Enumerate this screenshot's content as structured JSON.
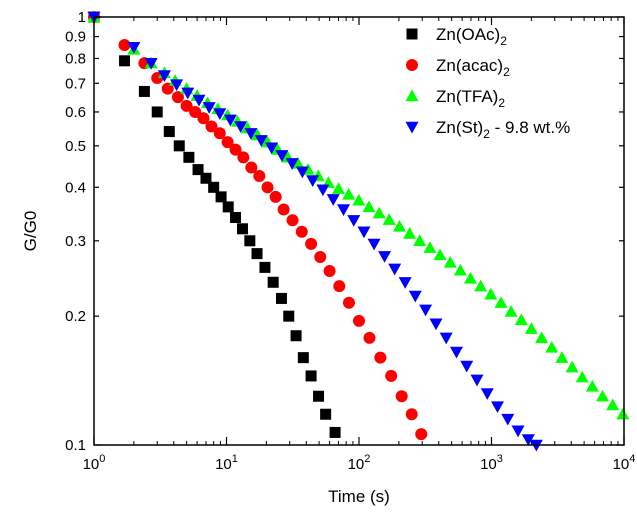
{
  "chart_data": {
    "type": "scatter",
    "xlabel": "Time (s)",
    "ylabel": "G/G0",
    "xscale": "log",
    "yscale": "log",
    "xlim": [
      1,
      10000
    ],
    "ylim": [
      0.1,
      1
    ],
    "grid": false,
    "legend_position": "top-right",
    "x_ticks": [
      {
        "value": 1,
        "base": "10",
        "exp": "0"
      },
      {
        "value": 10,
        "base": "10",
        "exp": "1"
      },
      {
        "value": 100,
        "base": "10",
        "exp": "2"
      },
      {
        "value": 1000,
        "base": "10",
        "exp": "3"
      },
      {
        "value": 10000,
        "base": "10",
        "exp": "4"
      }
    ],
    "y_ticks": [
      {
        "value": 0.1,
        "label": "0.1"
      },
      {
        "value": 0.2,
        "label": "0.2"
      },
      {
        "value": 0.3,
        "label": "0.3"
      },
      {
        "value": 0.4,
        "label": "0.4"
      },
      {
        "value": 0.5,
        "label": "0.5"
      },
      {
        "value": 0.6,
        "label": "0.6"
      },
      {
        "value": 0.7,
        "label": "0.7"
      },
      {
        "value": 0.8,
        "label": "0.8"
      },
      {
        "value": 0.9,
        "label": "0.9"
      },
      {
        "value": 1,
        "label": "1"
      }
    ],
    "series": [
      {
        "name": "Zn(OAc)2",
        "label_base": "Zn(OAc)",
        "label_sub": "2",
        "label_suffix": "",
        "marker": "square",
        "color": "#000000",
        "points": [
          [
            1.0,
            1.0
          ],
          [
            1.7,
            0.79
          ],
          [
            2.4,
            0.67
          ],
          [
            3.0,
            0.6
          ],
          [
            3.7,
            0.54
          ],
          [
            4.4,
            0.5
          ],
          [
            5.2,
            0.47
          ],
          [
            6.1,
            0.44
          ],
          [
            7.0,
            0.42
          ],
          [
            8.0,
            0.4
          ],
          [
            9.1,
            0.38
          ],
          [
            10.3,
            0.36
          ],
          [
            11.7,
            0.34
          ],
          [
            13.2,
            0.32
          ],
          [
            15.0,
            0.3
          ],
          [
            17.0,
            0.28
          ],
          [
            19.5,
            0.26
          ],
          [
            22.5,
            0.24
          ],
          [
            26.0,
            0.22
          ],
          [
            29.5,
            0.2
          ],
          [
            33.5,
            0.18
          ],
          [
            38.0,
            0.16
          ],
          [
            43.5,
            0.145
          ],
          [
            49.5,
            0.13
          ],
          [
            56.0,
            0.118
          ],
          [
            66.0,
            0.107
          ]
        ]
      },
      {
        "name": "Zn(acac)2",
        "label_base": "Zn(acac)",
        "label_sub": "2",
        "label_suffix": "",
        "marker": "circle",
        "color": "#ff0000",
        "points": [
          [
            1.0,
            1.0
          ],
          [
            1.7,
            0.86
          ],
          [
            2.4,
            0.78
          ],
          [
            3.0,
            0.72
          ],
          [
            3.6,
            0.68
          ],
          [
            4.3,
            0.65
          ],
          [
            5.0,
            0.62
          ],
          [
            5.8,
            0.6
          ],
          [
            6.7,
            0.58
          ],
          [
            7.7,
            0.555
          ],
          [
            8.9,
            0.535
          ],
          [
            10.2,
            0.51
          ],
          [
            11.7,
            0.49
          ],
          [
            13.4,
            0.47
          ],
          [
            15.4,
            0.445
          ],
          [
            17.7,
            0.425
          ],
          [
            20.4,
            0.4
          ],
          [
            23.5,
            0.38
          ],
          [
            27.0,
            0.355
          ],
          [
            31.5,
            0.335
          ],
          [
            37.0,
            0.315
          ],
          [
            43.5,
            0.295
          ],
          [
            51.0,
            0.275
          ],
          [
            60.0,
            0.255
          ],
          [
            71.0,
            0.235
          ],
          [
            84.0,
            0.215
          ],
          [
            100.0,
            0.195
          ],
          [
            120.0,
            0.178
          ],
          [
            145.0,
            0.16
          ],
          [
            175.0,
            0.145
          ],
          [
            210.0,
            0.13
          ],
          [
            250.0,
            0.118
          ],
          [
            295.0,
            0.106
          ]
        ]
      },
      {
        "name": "Zn(TFA)2",
        "label_base": "Zn(TFA)",
        "label_sub": "2",
        "label_suffix": "",
        "marker": "triangle-up",
        "color": "#00ff00",
        "points": [
          [
            1.0,
            1.0
          ],
          [
            2.0,
            0.84
          ],
          [
            2.7,
            0.78
          ],
          [
            3.4,
            0.74
          ],
          [
            4.1,
            0.71
          ],
          [
            5.0,
            0.68
          ],
          [
            6.0,
            0.655
          ],
          [
            7.2,
            0.63
          ],
          [
            8.6,
            0.61
          ],
          [
            10.2,
            0.59
          ],
          [
            12.1,
            0.57
          ],
          [
            14.4,
            0.55
          ],
          [
            17.1,
            0.53
          ],
          [
            20.4,
            0.51
          ],
          [
            24.3,
            0.49
          ],
          [
            29.0,
            0.47
          ],
          [
            34.6,
            0.455
          ],
          [
            41.3,
            0.44
          ],
          [
            49.3,
            0.425
          ],
          [
            58.8,
            0.41
          ],
          [
            70.1,
            0.397
          ],
          [
            83.6,
            0.385
          ],
          [
            99.7,
            0.373
          ],
          [
            119,
            0.36
          ],
          [
            142,
            0.348
          ],
          [
            169,
            0.336
          ],
          [
            202,
            0.324
          ],
          [
            241,
            0.312
          ],
          [
            287,
            0.3
          ],
          [
            343,
            0.289
          ],
          [
            409,
            0.278
          ],
          [
            488,
            0.267
          ],
          [
            582,
            0.256
          ],
          [
            694,
            0.245
          ],
          [
            828,
            0.235
          ],
          [
            988,
            0.225
          ],
          [
            1180,
            0.215
          ],
          [
            1405,
            0.205
          ],
          [
            1680,
            0.196
          ],
          [
            2000,
            0.187
          ],
          [
            2390,
            0.178
          ],
          [
            2850,
            0.169
          ],
          [
            3400,
            0.16
          ],
          [
            4060,
            0.152
          ],
          [
            4840,
            0.144
          ],
          [
            5770,
            0.137
          ],
          [
            6890,
            0.13
          ],
          [
            8220,
            0.124
          ],
          [
            9800,
            0.118
          ]
        ]
      },
      {
        "name": "Zn(St)2 - 9.8 wt.%",
        "label_base": "Zn(St)",
        "label_sub": "2",
        "label_suffix": " - 9.8 wt.%",
        "marker": "triangle-down",
        "color": "#0000ff",
        "points": [
          [
            1.0,
            1.0
          ],
          [
            2.0,
            0.85
          ],
          [
            2.7,
            0.78
          ],
          [
            3.4,
            0.73
          ],
          [
            4.2,
            0.695
          ],
          [
            5.1,
            0.665
          ],
          [
            6.2,
            0.64
          ],
          [
            7.4,
            0.615
          ],
          [
            8.9,
            0.595
          ],
          [
            10.7,
            0.575
          ],
          [
            12.8,
            0.555
          ],
          [
            15.3,
            0.535
          ],
          [
            18.3,
            0.515
          ],
          [
            21.9,
            0.495
          ],
          [
            26.2,
            0.475
          ],
          [
            31.3,
            0.455
          ],
          [
            37.4,
            0.435
          ],
          [
            44.7,
            0.415
          ],
          [
            53.4,
            0.395
          ],
          [
            63.9,
            0.375
          ],
          [
            76.4,
            0.355
          ],
          [
            91.3,
            0.335
          ],
          [
            109,
            0.315
          ],
          [
            130,
            0.295
          ],
          [
            156,
            0.276
          ],
          [
            186,
            0.258
          ],
          [
            223,
            0.24
          ],
          [
            266,
            0.223
          ],
          [
            318,
            0.207
          ],
          [
            381,
            0.192
          ],
          [
            455,
            0.178
          ],
          [
            544,
            0.165
          ],
          [
            650,
            0.153
          ],
          [
            777,
            0.142
          ],
          [
            929,
            0.132
          ],
          [
            1110,
            0.123
          ],
          [
            1327,
            0.115
          ],
          [
            1586,
            0.108
          ],
          [
            1896,
            0.103
          ],
          [
            2180,
            0.1
          ]
        ]
      }
    ]
  }
}
